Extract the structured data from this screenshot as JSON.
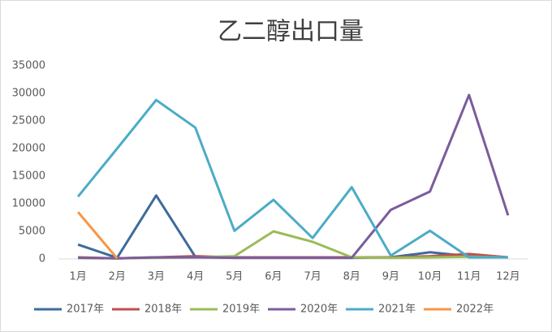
{
  "chart_data": {
    "type": "line",
    "title": "乙二醇出口量",
    "categories": [
      "1月",
      "2月",
      "3月",
      "4月",
      "5月",
      "6月",
      "7月",
      "8月",
      "9月",
      "10月",
      "11月",
      "12月"
    ],
    "series": [
      {
        "name": "2017年",
        "color": "#3e6b9c",
        "values": [
          2600,
          200,
          11500,
          400,
          200,
          200,
          200,
          200,
          300,
          1200,
          500,
          300
        ]
      },
      {
        "name": "2018年",
        "color": "#c0504d",
        "values": [
          300,
          100,
          300,
          500,
          300,
          300,
          300,
          300,
          300,
          500,
          900,
          300
        ]
      },
      {
        "name": "2019年",
        "color": "#9bbb59",
        "values": [
          200,
          100,
          200,
          300,
          500,
          5000,
          3100,
          300,
          200,
          300,
          400,
          300
        ]
      },
      {
        "name": "2020年",
        "color": "#7b5c9c",
        "values": [
          200,
          100,
          300,
          300,
          200,
          200,
          200,
          200,
          8900,
          12200,
          29700,
          7900
        ]
      },
      {
        "name": "2021年",
        "color": "#4bacc6",
        "values": [
          11300,
          20000,
          28800,
          23800,
          5100,
          10700,
          3800,
          13000,
          600,
          5100,
          300,
          300
        ]
      },
      {
        "name": "2022年",
        "color": "#f79646",
        "values": [
          8500,
          100,
          null,
          null,
          null,
          null,
          null,
          null,
          null,
          null,
          null,
          null
        ]
      }
    ],
    "ylim": [
      0,
      35000
    ],
    "yticks": [
      0,
      5000,
      10000,
      15000,
      20000,
      25000,
      30000,
      35000
    ],
    "grid": false,
    "legend": "bottom"
  }
}
